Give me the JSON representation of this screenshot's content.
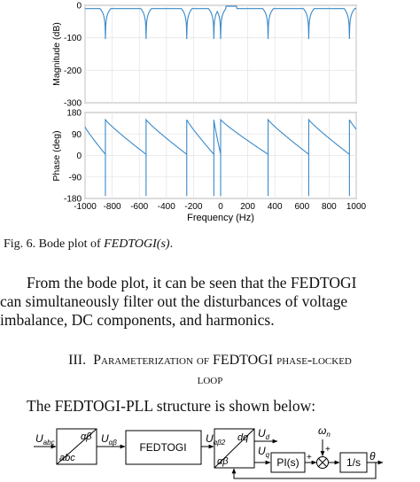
{
  "chart_data": [
    {
      "type": "line",
      "title": "",
      "xlabel": "",
      "ylabel": "Magnitude (dB)",
      "xlim": [
        -1000,
        1000
      ],
      "ylim": [
        -300,
        0
      ],
      "yticks": [
        0,
        -100,
        -200,
        -300
      ],
      "series": [
        {
          "notches_x": [
            -850,
            -550,
            -250,
            -50,
            0,
            350,
            650,
            950
          ],
          "baseline_db": -10
        }
      ]
    },
    {
      "type": "line",
      "title": "",
      "xlabel": "Frequency  (Hz)",
      "ylabel": "Phase (deg)",
      "xlim": [
        -1000,
        1000
      ],
      "ylim": [
        -180,
        180
      ],
      "xticks": [
        -1000,
        -800,
        -600,
        -400,
        -200,
        0,
        200,
        400,
        600,
        800,
        1000
      ],
      "yticks": [
        180,
        90,
        0,
        -90,
        -180
      ],
      "series": [
        {
          "jumps_x": [
            -850,
            -550,
            -250,
            -50,
            0,
            350,
            650,
            950
          ]
        }
      ]
    }
  ],
  "caption": {
    "prefix": "Fig. 6.   Bode plot of ",
    "function": "FEDTOGI(s)",
    "suffix": "."
  },
  "paragraph": {
    "lines": [
      "From the bode plot, it can be seen that the FEDTOGI",
      "can simultaneously filter out the disturbances of voltage",
      "imbalance, DC components, and harmonics."
    ]
  },
  "heading": {
    "number": "III.",
    "text1": "Parameterization of FEDTOGI phase-locked",
    "text2": "loop"
  },
  "intro": "The FEDTOGI-PLL structure is shown below:",
  "diagram": {
    "input_label": "U",
    "input_sub": "abc",
    "clarke_top": "αβ",
    "clarke_bottom": "abc",
    "u_ab_label": "U",
    "u_ab_sub": "αβ",
    "fedtogi": "FEDTOGI",
    "u_ab2_label": "U",
    "u_ab2_sub": "αβ2",
    "park_top": "dq",
    "park_bottom": "αβ",
    "ud_label": "U",
    "ud_sub": "d",
    "uq_label": "U",
    "uq_sub": "q",
    "pi": "PI(s)",
    "omega_label": "ω",
    "omega_sub": "n",
    "integrator": "1/s",
    "theta": "θ",
    "plus": "+"
  }
}
